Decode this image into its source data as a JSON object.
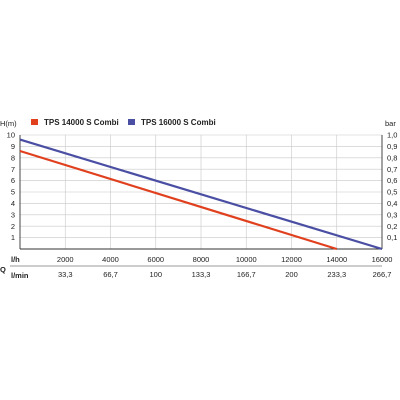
{
  "chart_data": {
    "type": "line",
    "y_left_label": "H(m)",
    "y_right_label": "bar",
    "x_label_top": "l/h",
    "x_label_bottom": "l/min",
    "q_label": "Q",
    "xlim": [
      0,
      16000
    ],
    "ylim_left": [
      0,
      10
    ],
    "ylim_right": [
      0,
      1.0
    ],
    "grid": true,
    "legend_position": "top",
    "x_ticks": [
      {
        "value": 2000,
        "label": "2000"
      },
      {
        "value": 4000,
        "label": "4000"
      },
      {
        "value": 6000,
        "label": "6000"
      },
      {
        "value": 8000,
        "label": "8000"
      },
      {
        "value": 10000,
        "label": "10000"
      },
      {
        "value": 12000,
        "label": "12000"
      },
      {
        "value": 14000,
        "label": "14000"
      },
      {
        "value": 16000,
        "label": "16000"
      }
    ],
    "x_ticks_lmin": [
      {
        "value": 2000,
        "label": "33,3"
      },
      {
        "value": 4000,
        "label": "66,7"
      },
      {
        "value": 6000,
        "label": "100"
      },
      {
        "value": 8000,
        "label": "133,3"
      },
      {
        "value": 10000,
        "label": "166,7"
      },
      {
        "value": 12000,
        "label": "200"
      },
      {
        "value": 14000,
        "label": "233,3"
      },
      {
        "value": 16000,
        "label": "266,7"
      }
    ],
    "y_ticks_left": [
      {
        "value": 1,
        "label": "1"
      },
      {
        "value": 2,
        "label": "2"
      },
      {
        "value": 3,
        "label": "3"
      },
      {
        "value": 4,
        "label": "4"
      },
      {
        "value": 5,
        "label": "5"
      },
      {
        "value": 6,
        "label": "6"
      },
      {
        "value": 7,
        "label": "7"
      },
      {
        "value": 8,
        "label": "8"
      },
      {
        "value": 9,
        "label": "9"
      },
      {
        "value": 10,
        "label": "10"
      }
    ],
    "y_ticks_right": [
      {
        "value": 1,
        "label": "0,1"
      },
      {
        "value": 2,
        "label": "0,2"
      },
      {
        "value": 3,
        "label": "0,3"
      },
      {
        "value": 4,
        "label": "0,4"
      },
      {
        "value": 5,
        "label": "0,5"
      },
      {
        "value": 6,
        "label": "0,6"
      },
      {
        "value": 7,
        "label": "0,7"
      },
      {
        "value": 8,
        "label": "0,8"
      },
      {
        "value": 9,
        "label": "0,9"
      },
      {
        "value": 10,
        "label": "1,0"
      }
    ],
    "series": [
      {
        "name": "TPS 14000 S Combi",
        "color": "#e0401e",
        "x": [
          0,
          14000
        ],
        "y": [
          8.6,
          0
        ]
      },
      {
        "name": "TPS 16000 S Combi",
        "color": "#4a4fa3",
        "x": [
          0,
          16000
        ],
        "y": [
          9.6,
          0
        ]
      }
    ]
  }
}
